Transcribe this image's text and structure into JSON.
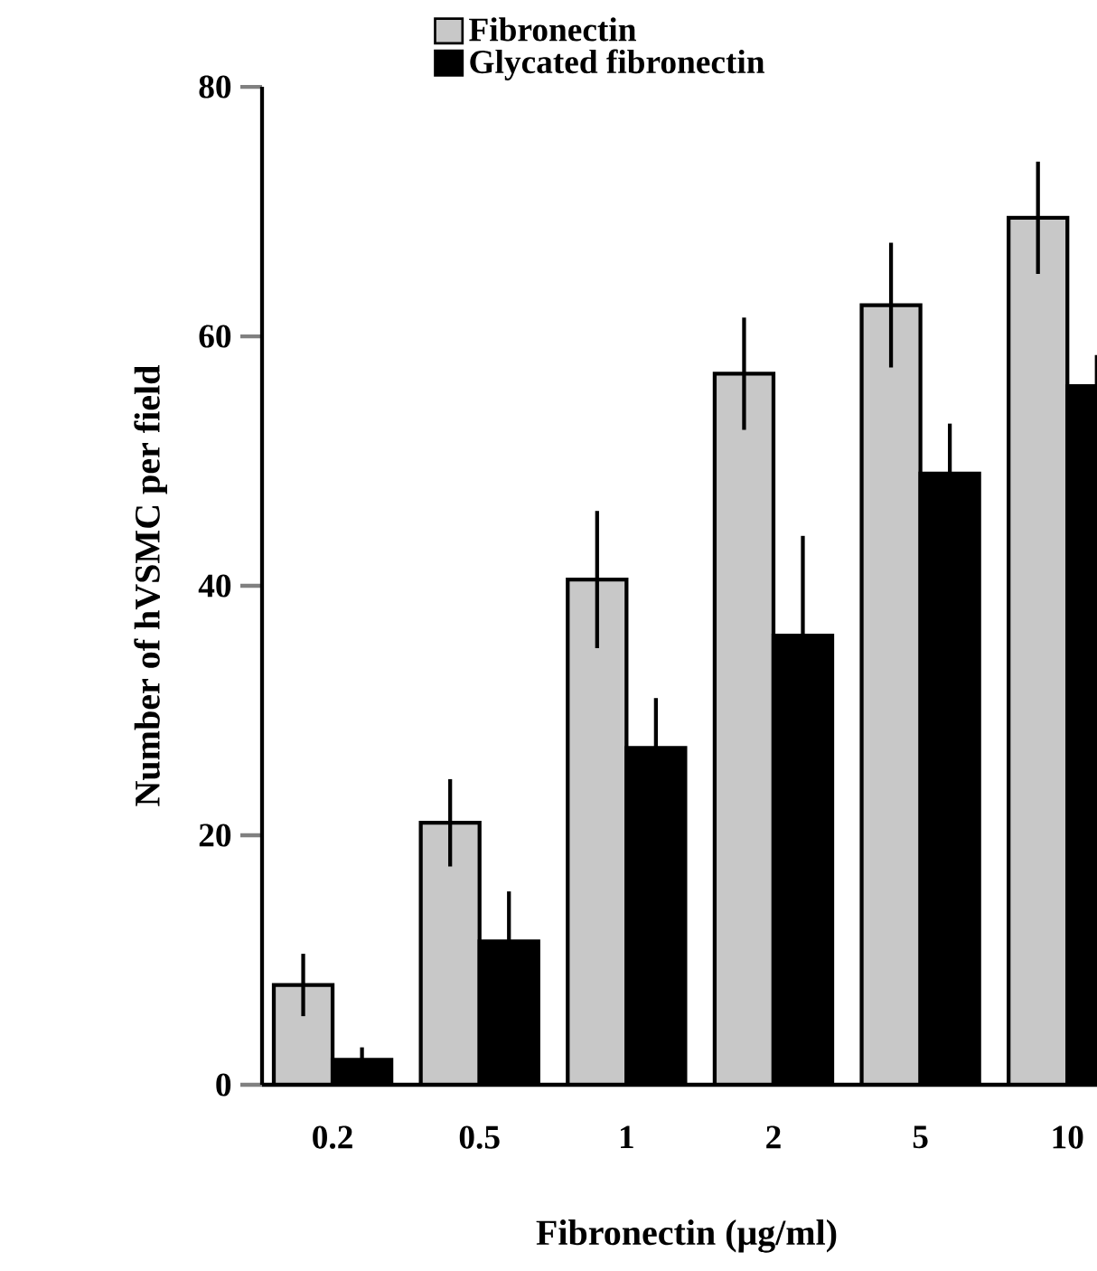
{
  "chart_data": {
    "type": "bar",
    "xlabel": "Fibronectin (μg/ml)",
    "ylabel": "Number of hVSMC per field",
    "categories": [
      "0.2",
      "0.5",
      "1",
      "2",
      "5",
      "10"
    ],
    "series": [
      {
        "name": "Fibronectin",
        "color": "#c8c8c8",
        "values": [
          8,
          21,
          40.5,
          57,
          62.5,
          69.5
        ],
        "errors": [
          2.5,
          3.5,
          5.5,
          4.5,
          5,
          4.5
        ]
      },
      {
        "name": "Glycated fibronectin",
        "color": "#000000",
        "values": [
          2,
          11.5,
          27,
          36,
          49,
          56
        ],
        "errors": [
          1,
          4,
          4,
          8,
          4,
          2.5
        ]
      }
    ],
    "ylim": [
      0,
      80
    ],
    "yticks": [
      0,
      20,
      40,
      60,
      80
    ],
    "legend": "top"
  }
}
